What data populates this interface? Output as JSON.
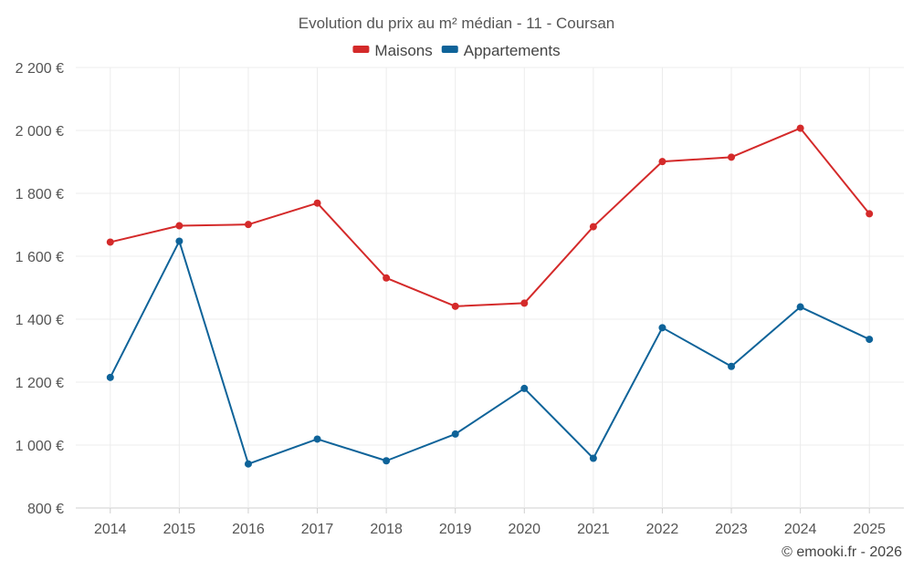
{
  "chart_data": {
    "type": "line",
    "title": "Evolution du prix au m² médian - 11 - Coursan",
    "categories": [
      "2014",
      "2015",
      "2016",
      "2017",
      "2018",
      "2019",
      "2020",
      "2021",
      "2022",
      "2023",
      "2024",
      "2025"
    ],
    "series": [
      {
        "name": "Maisons",
        "color": "#d42a2a",
        "values": [
          1645,
          1697,
          1701,
          1769,
          1531,
          1441,
          1451,
          1694,
          1901,
          1915,
          2007,
          1735
        ]
      },
      {
        "name": "Appartements",
        "color": "#0e6399",
        "values": [
          1215,
          1648,
          940,
          1019,
          950,
          1035,
          1180,
          958,
          1373,
          1250,
          1439,
          1336
        ]
      }
    ],
    "ylim": [
      800,
      2200
    ],
    "yticks": [
      800,
      1000,
      1200,
      1400,
      1600,
      1800,
      2000,
      2200
    ],
    "ytick_labels": [
      "800 €",
      "1 000 €",
      "1 200 €",
      "1 400 €",
      "1 600 €",
      "1 800 €",
      "2 000 €",
      "2 200 €"
    ],
    "xlabel": "",
    "ylabel": "",
    "legend_position": "top-center",
    "grid": true
  },
  "credit": "© emooki.fr - 2026"
}
